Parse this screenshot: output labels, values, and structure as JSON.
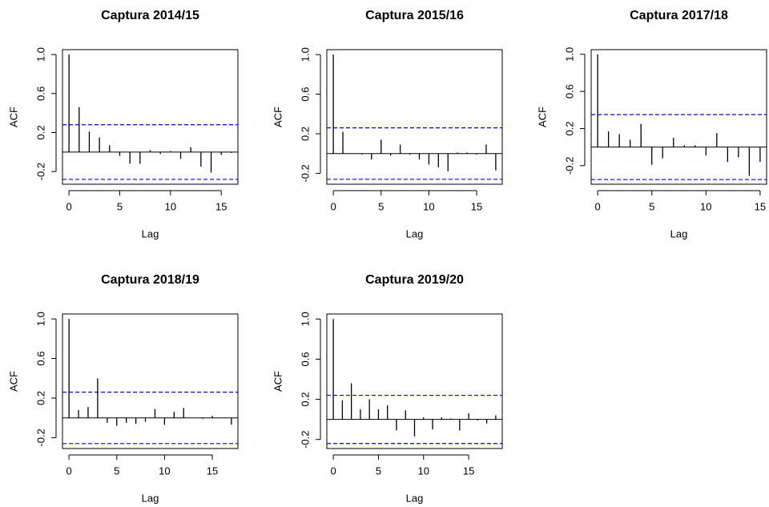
{
  "chart_data": [
    {
      "type": "bar",
      "title": "Captura 2014/15",
      "xlabel": "Lag",
      "ylabel": "ACF",
      "color": "#000000",
      "ci_color": "#0000ff",
      "conf_limit": 0.28,
      "x": [
        0,
        1,
        2,
        3,
        4,
        5,
        6,
        7,
        8,
        9,
        10,
        11,
        12,
        13,
        14,
        15,
        16
      ],
      "values": [
        1.0,
        0.46,
        0.21,
        0.15,
        0.07,
        -0.04,
        -0.12,
        -0.12,
        0.02,
        -0.02,
        0.01,
        -0.07,
        0.05,
        -0.15,
        -0.21,
        -0.03,
        -0.01
      ],
      "xlim": [
        -0.64,
        16.64
      ],
      "ylim": [
        -0.33,
        1.05
      ],
      "xticks": [
        0,
        5,
        10,
        15
      ],
      "yticks": [
        -0.2,
        0.2,
        0.6,
        {
          "value": 1,
          "label": "1.0"
        }
      ]
    },
    {
      "type": "bar",
      "title": "Captura 2015/16",
      "xlabel": "Lag",
      "ylabel": "ACF",
      "color": "#000000",
      "ci_color": "#0000ff",
      "conf_limit": 0.26,
      "x": [
        0,
        1,
        2,
        3,
        4,
        5,
        6,
        7,
        8,
        9,
        10,
        11,
        12,
        13,
        14,
        15,
        16,
        17
      ],
      "values": [
        1.0,
        0.22,
        0.0,
        -0.01,
        -0.06,
        0.14,
        -0.02,
        0.09,
        -0.01,
        -0.06,
        -0.11,
        -0.14,
        -0.18,
        0.01,
        0.01,
        -0.01,
        0.09,
        -0.17
      ],
      "xlim": [
        -0.68,
        17.68
      ],
      "ylim": [
        -0.31,
        1.05
      ],
      "xticks": [
        0,
        5,
        10,
        15
      ],
      "yticks": [
        -0.2,
        0.2,
        0.6,
        {
          "value": 1,
          "label": "1.0"
        }
      ]
    },
    {
      "type": "bar",
      "title": "Captura 2017/18",
      "xlabel": "Lag",
      "ylabel": "ACF",
      "color": "#000000",
      "ci_color": "#0000ff",
      "conf_limit": 0.35,
      "x": [
        0,
        1,
        2,
        3,
        4,
        5,
        6,
        7,
        8,
        9,
        10,
        11,
        12,
        13,
        14,
        15
      ],
      "values": [
        1.0,
        0.17,
        0.14,
        0.08,
        0.25,
        -0.19,
        -0.12,
        0.1,
        0.02,
        0.02,
        -0.09,
        0.15,
        -0.16,
        -0.11,
        -0.31,
        -0.16
      ],
      "xlim": [
        -0.6,
        15.6
      ],
      "ylim": [
        -0.4,
        1.05
      ],
      "xticks": [
        0,
        5,
        10,
        15
      ],
      "yticks": [
        -0.2,
        0.2,
        0.6,
        {
          "value": 1,
          "label": "1.0"
        }
      ]
    },
    {
      "type": "bar",
      "title": "Captura 2018/19",
      "xlabel": "Lag",
      "ylabel": "ACF",
      "color": "#000000",
      "ci_color": "#0000ff",
      "conf_limit": 0.26,
      "x": [
        0,
        1,
        2,
        3,
        4,
        5,
        6,
        7,
        8,
        9,
        10,
        11,
        12,
        13,
        14,
        15,
        16,
        17
      ],
      "values": [
        1.0,
        0.08,
        0.11,
        0.4,
        -0.05,
        -0.08,
        -0.05,
        -0.06,
        -0.04,
        0.09,
        -0.07,
        0.06,
        0.1,
        0.0,
        -0.01,
        0.02,
        0.0,
        -0.07
      ],
      "xlim": [
        -0.68,
        17.68
      ],
      "ylim": [
        -0.31,
        1.05
      ],
      "xticks": [
        0,
        5,
        10,
        15
      ],
      "yticks": [
        -0.2,
        0.2,
        0.6,
        {
          "value": 1,
          "label": "1.0"
        }
      ]
    },
    {
      "type": "bar",
      "title": "Captura 2019/20",
      "xlabel": "Lag",
      "ylabel": "ACF",
      "color": "#000000",
      "ci_color": "#0000ff",
      "conf_limit": 0.24,
      "x": [
        0,
        1,
        2,
        3,
        4,
        5,
        6,
        7,
        8,
        9,
        10,
        11,
        12,
        13,
        14,
        15,
        16,
        17,
        18
      ],
      "values": [
        1.0,
        0.19,
        0.36,
        0.1,
        0.2,
        0.1,
        0.14,
        -0.11,
        0.09,
        -0.17,
        0.02,
        -0.1,
        0.02,
        0.01,
        -0.11,
        0.06,
        -0.01,
        -0.04,
        0.04
      ],
      "xlim": [
        -0.72,
        18.72
      ],
      "ylim": [
        -0.29,
        1.05
      ],
      "xticks": [
        0,
        5,
        10,
        15
      ],
      "yticks": [
        -0.2,
        0.2,
        0.6,
        {
          "value": 1,
          "label": "1.0"
        }
      ]
    }
  ]
}
